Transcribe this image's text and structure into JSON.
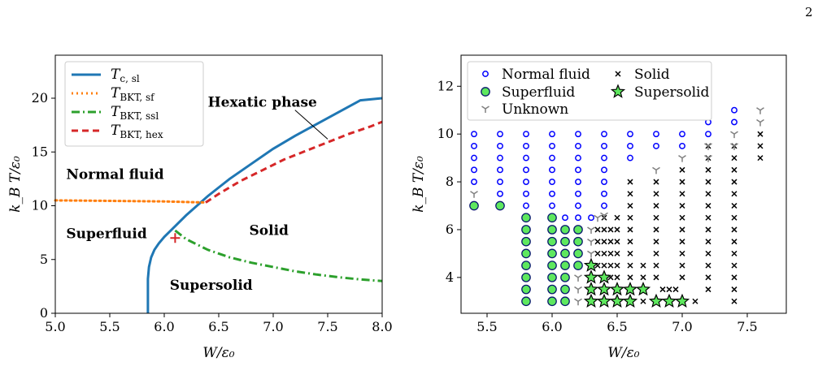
{
  "page_number": "2",
  "chart_data": [
    {
      "type": "line",
      "panel": "left",
      "xlabel": "W/ε₀",
      "ylabel": "k_B T/ε₀",
      "xlim": [
        5.0,
        8.0
      ],
      "ylim": [
        0,
        24
      ],
      "xticks": [
        "5.0",
        "5.5",
        "6.0",
        "6.5",
        "7.0",
        "7.5",
        "8.0"
      ],
      "yticks": [
        "0",
        "5",
        "10",
        "15",
        "20"
      ],
      "grid": false,
      "legend_position": "top-left",
      "series": [
        {
          "name": "T_c, sl",
          "color": "#1f77b4",
          "style": "solid",
          "x": [
            5.85,
            5.85,
            5.86,
            5.88,
            5.91,
            5.95,
            6.0,
            6.05,
            6.1,
            6.2,
            6.3,
            6.4,
            6.5,
            6.6,
            6.8,
            7.0,
            7.2,
            7.4,
            7.6,
            7.8,
            8.0
          ],
          "y": [
            0,
            3.2,
            4.3,
            5.2,
            5.9,
            6.5,
            7.1,
            7.6,
            8.1,
            9.1,
            10.0,
            10.9,
            11.7,
            12.5,
            13.9,
            15.3,
            16.5,
            17.6,
            18.7,
            19.8,
            20.0
          ]
        },
        {
          "name": "T_BKT, sf",
          "color": "#ff7f0e",
          "style": "dotted",
          "x": [
            5.0,
            5.5,
            6.0,
            6.2,
            6.38
          ],
          "y": [
            10.5,
            10.45,
            10.4,
            10.35,
            10.3
          ]
        },
        {
          "name": "T_BKT, ssl",
          "color": "#2ca02c",
          "style": "dashdot",
          "x": [
            6.1,
            6.2,
            6.4,
            6.6,
            6.8,
            7.0,
            7.2,
            7.4,
            7.6,
            7.8,
            8.0
          ],
          "y": [
            7.7,
            6.9,
            5.9,
            5.2,
            4.7,
            4.3,
            3.9,
            3.6,
            3.35,
            3.15,
            3.0
          ]
        },
        {
          "name": "T_BKT, hex",
          "color": "#d62728",
          "style": "dashed",
          "x": [
            6.38,
            6.5,
            6.7,
            6.9,
            7.1,
            7.3,
            7.5,
            7.7,
            7.9,
            8.0
          ],
          "y": [
            10.3,
            11.1,
            12.3,
            13.3,
            14.3,
            15.1,
            15.9,
            16.7,
            17.4,
            17.8
          ]
        }
      ],
      "marker": {
        "x": 6.1,
        "y": 7.0,
        "symbol": "+",
        "color": "#d62728"
      },
      "annotations": [
        {
          "text": "Hexatic phase",
          "x": 6.4,
          "y": 19.2,
          "bold": true,
          "arrow_to": [
            7.5,
            16.2
          ]
        },
        {
          "text": "Normal fluid",
          "x": 5.1,
          "y": 12.5,
          "bold": true
        },
        {
          "text": "Superfluid",
          "x": 5.1,
          "y": 7.0,
          "bold": true
        },
        {
          "text": "Solid",
          "x": 6.78,
          "y": 7.3,
          "bold": true
        },
        {
          "text": "Supersolid",
          "x": 6.05,
          "y": 2.2,
          "bold": true
        }
      ],
      "legend": [
        {
          "main": "T",
          "sub": "c, sl"
        },
        {
          "main": "T",
          "sub": "BKT, sf"
        },
        {
          "main": "T",
          "sub": "BKT, ssl"
        },
        {
          "main": "T",
          "sub": "BKT, hex"
        }
      ]
    },
    {
      "type": "scatter",
      "panel": "right",
      "xlabel": "W/ε₀",
      "ylabel": "k_B T/ε₀",
      "xlim": [
        5.3,
        7.8
      ],
      "ylim": [
        2.5,
        13.3
      ],
      "xticks": [
        "5.5",
        "6.0",
        "6.5",
        "7.0",
        "7.5"
      ],
      "yticks": [
        "4",
        "6",
        "8",
        "10",
        "12"
      ],
      "grid": false,
      "legend_position": "top-left",
      "legend": [
        "Normal fluid",
        "Solid",
        "Superfluid",
        "Supersolid",
        "Unknown"
      ],
      "series": [
        {
          "name": "Normal fluid",
          "marker": "circle-open",
          "color": "#0000ff",
          "points": [
            [
              5.4,
              10
            ],
            [
              5.4,
              9.5
            ],
            [
              5.4,
              9
            ],
            [
              5.4,
              8.5
            ],
            [
              5.4,
              8
            ],
            [
              5.6,
              10
            ],
            [
              5.6,
              9.5
            ],
            [
              5.6,
              9
            ],
            [
              5.6,
              8.5
            ],
            [
              5.6,
              8
            ],
            [
              5.6,
              7.5
            ],
            [
              5.8,
              10
            ],
            [
              5.8,
              9.5
            ],
            [
              5.8,
              9
            ],
            [
              5.8,
              8.5
            ],
            [
              5.8,
              8
            ],
            [
              5.8,
              7.5
            ],
            [
              5.8,
              7
            ],
            [
              6.0,
              10
            ],
            [
              6.0,
              9.5
            ],
            [
              6.0,
              9
            ],
            [
              6.0,
              8.5
            ],
            [
              6.0,
              8
            ],
            [
              6.0,
              7.5
            ],
            [
              6.0,
              7
            ],
            [
              6.1,
              6.5
            ],
            [
              6.2,
              10
            ],
            [
              6.2,
              9.5
            ],
            [
              6.2,
              9
            ],
            [
              6.2,
              8.5
            ],
            [
              6.2,
              8
            ],
            [
              6.2,
              7.5
            ],
            [
              6.2,
              7
            ],
            [
              6.2,
              6.5
            ],
            [
              6.3,
              6.5
            ],
            [
              6.4,
              10
            ],
            [
              6.4,
              9.5
            ],
            [
              6.4,
              9
            ],
            [
              6.4,
              8.5
            ],
            [
              6.4,
              8
            ],
            [
              6.4,
              7.5
            ],
            [
              6.4,
              7
            ],
            [
              6.6,
              10
            ],
            [
              6.6,
              9.5
            ],
            [
              6.6,
              9
            ],
            [
              6.8,
              10
            ],
            [
              6.8,
              9.5
            ],
            [
              7.0,
              10
            ],
            [
              7.0,
              9.5
            ],
            [
              7.2,
              11
            ],
            [
              7.2,
              10.5
            ],
            [
              7.2,
              10
            ],
            [
              7.4,
              11
            ],
            [
              7.4,
              10.5
            ]
          ]
        },
        {
          "name": "Solid",
          "marker": "x",
          "color": "#000000",
          "points": [
            [
              6.3,
              4
            ],
            [
              6.35,
              4.5
            ],
            [
              6.35,
              5
            ],
            [
              6.35,
              5.5
            ],
            [
              6.35,
              6
            ],
            [
              6.4,
              3
            ],
            [
              6.4,
              3.5
            ],
            [
              6.4,
              4.5
            ],
            [
              6.4,
              5
            ],
            [
              6.4,
              5.5
            ],
            [
              6.4,
              6
            ],
            [
              6.4,
              6.5
            ],
            [
              6.45,
              4
            ],
            [
              6.45,
              4.5
            ],
            [
              6.45,
              5
            ],
            [
              6.45,
              5.5
            ],
            [
              6.45,
              6
            ],
            [
              6.5,
              4
            ],
            [
              6.5,
              4.5
            ],
            [
              6.5,
              5
            ],
            [
              6.5,
              5.5
            ],
            [
              6.5,
              6
            ],
            [
              6.5,
              6.5
            ],
            [
              6.6,
              4
            ],
            [
              6.6,
              4.5
            ],
            [
              6.6,
              5
            ],
            [
              6.6,
              5.5
            ],
            [
              6.6,
              6
            ],
            [
              6.6,
              6.5
            ],
            [
              6.6,
              7
            ],
            [
              6.6,
              7.5
            ],
            [
              6.6,
              8
            ],
            [
              6.7,
              3
            ],
            [
              6.7,
              4
            ],
            [
              6.7,
              4.5
            ],
            [
              6.8,
              4
            ],
            [
              6.8,
              4.5
            ],
            [
              6.8,
              5
            ],
            [
              6.8,
              5.5
            ],
            [
              6.8,
              6
            ],
            [
              6.8,
              6.5
            ],
            [
              6.8,
              7
            ],
            [
              6.8,
              7.5
            ],
            [
              6.8,
              8
            ],
            [
              6.85,
              3.5
            ],
            [
              6.9,
              3.5
            ],
            [
              6.95,
              3.5
            ],
            [
              7.0,
              4
            ],
            [
              7.0,
              4.5
            ],
            [
              7.0,
              5
            ],
            [
              7.0,
              5.5
            ],
            [
              7.0,
              6
            ],
            [
              7.0,
              6.5
            ],
            [
              7.0,
              7
            ],
            [
              7.0,
              7.5
            ],
            [
              7.0,
              8
            ],
            [
              7.0,
              8.5
            ],
            [
              7.1,
              3
            ],
            [
              7.2,
              3.5
            ],
            [
              7.2,
              4
            ],
            [
              7.2,
              4.5
            ],
            [
              7.2,
              5
            ],
            [
              7.2,
              5.5
            ],
            [
              7.2,
              6
            ],
            [
              7.2,
              6.5
            ],
            [
              7.2,
              7
            ],
            [
              7.2,
              7.5
            ],
            [
              7.2,
              8
            ],
            [
              7.2,
              8.5
            ],
            [
              7.2,
              9
            ],
            [
              7.2,
              9.5
            ],
            [
              7.4,
              3
            ],
            [
              7.4,
              3.5
            ],
            [
              7.4,
              4
            ],
            [
              7.4,
              4.5
            ],
            [
              7.4,
              5
            ],
            [
              7.4,
              5.5
            ],
            [
              7.4,
              6
            ],
            [
              7.4,
              6.5
            ],
            [
              7.4,
              7
            ],
            [
              7.4,
              7.5
            ],
            [
              7.4,
              8
            ],
            [
              7.4,
              8.5
            ],
            [
              7.4,
              9
            ],
            [
              7.4,
              9.5
            ],
            [
              7.6,
              10
            ],
            [
              7.6,
              9.5
            ],
            [
              7.6,
              9
            ]
          ]
        },
        {
          "name": "Superfluid",
          "marker": "circle-filled",
          "color": "#5ee85e",
          "points": [
            [
              5.4,
              7
            ],
            [
              5.6,
              7
            ],
            [
              5.8,
              6.5
            ],
            [
              5.8,
              6
            ],
            [
              5.8,
              5.5
            ],
            [
              5.8,
              5
            ],
            [
              5.8,
              4.5
            ],
            [
              5.8,
              4
            ],
            [
              5.8,
              3.5
            ],
            [
              5.8,
              3
            ],
            [
              6.0,
              6.5
            ],
            [
              6.0,
              6
            ],
            [
              6.0,
              5.5
            ],
            [
              6.0,
              5
            ],
            [
              6.0,
              4.5
            ],
            [
              6.0,
              4
            ],
            [
              6.0,
              3.5
            ],
            [
              6.0,
              3
            ],
            [
              6.1,
              6
            ],
            [
              6.1,
              5.5
            ],
            [
              6.1,
              5
            ],
            [
              6.1,
              4.5
            ],
            [
              6.1,
              4
            ],
            [
              6.1,
              3.5
            ],
            [
              6.1,
              3
            ],
            [
              6.2,
              6
            ],
            [
              6.2,
              5.5
            ],
            [
              6.2,
              5
            ],
            [
              6.2,
              4.5
            ]
          ]
        },
        {
          "name": "Supersolid",
          "marker": "star",
          "color": "#5ee85e",
          "points": [
            [
              6.3,
              4.5
            ],
            [
              6.3,
              4
            ],
            [
              6.3,
              3.5
            ],
            [
              6.3,
              3
            ],
            [
              6.4,
              4
            ],
            [
              6.4,
              3.5
            ],
            [
              6.4,
              3
            ],
            [
              6.5,
              3.5
            ],
            [
              6.5,
              3
            ],
            [
              6.6,
              3.5
            ],
            [
              6.6,
              3
            ],
            [
              6.7,
              3.5
            ],
            [
              6.8,
              3
            ],
            [
              6.9,
              3
            ],
            [
              7.0,
              3
            ]
          ]
        },
        {
          "name": "Unknown",
          "marker": "tri-down",
          "color": "#808080",
          "points": [
            [
              5.4,
              7.5
            ],
            [
              6.2,
              4
            ],
            [
              6.2,
              3.5
            ],
            [
              6.2,
              3
            ],
            [
              6.3,
              5
            ],
            [
              6.3,
              5.5
            ],
            [
              6.3,
              6
            ],
            [
              6.35,
              6.5
            ],
            [
              6.4,
              6.6
            ],
            [
              6.8,
              8.5
            ],
            [
              7.0,
              9
            ],
            [
              7.2,
              9.5
            ],
            [
              7.2,
              9
            ],
            [
              7.4,
              10
            ],
            [
              7.4,
              9.5
            ],
            [
              7.6,
              11
            ],
            [
              7.6,
              10.5
            ]
          ]
        }
      ]
    }
  ]
}
